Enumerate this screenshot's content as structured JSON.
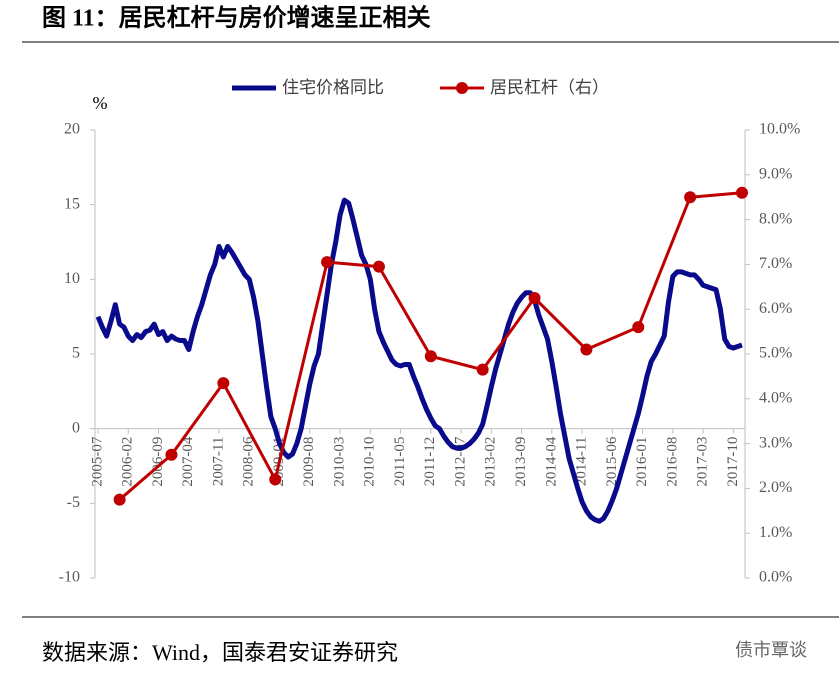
{
  "chart_data": {
    "type": "line",
    "title": "图 11：居民杠杆与房价增速呈正相关",
    "y_unit": "%",
    "source": "数据来源：Wind，国泰君安证券研究",
    "watermark": "债市覃谈",
    "categories": [
      "2005-07",
      null,
      null,
      null,
      null,
      null,
      null,
      "2006-02",
      null,
      null,
      null,
      null,
      null,
      null,
      "2006-09",
      null,
      null,
      null,
      null,
      null,
      null,
      "2007-04",
      null,
      null,
      null,
      null,
      null,
      null,
      "2007-11",
      null,
      null,
      null,
      null,
      null,
      null,
      "2008-06",
      null,
      null,
      null,
      null,
      null,
      null,
      "2009-01",
      null,
      null,
      null,
      null,
      null,
      null,
      "2009-08",
      null,
      null,
      null,
      null,
      null,
      null,
      "2010-03",
      null,
      null,
      null,
      null,
      null,
      null,
      "2010-10",
      null,
      null,
      null,
      null,
      null,
      null,
      "2011-05",
      null,
      null,
      null,
      null,
      null,
      null,
      "2011-12",
      null,
      null,
      null,
      null,
      null,
      null,
      "2012-07",
      null,
      null,
      null,
      null,
      null,
      null,
      "2013-02",
      null,
      null,
      null,
      null,
      null,
      null,
      "2013-09",
      null,
      null,
      null,
      null,
      null,
      null,
      "2014-04",
      null,
      null,
      null,
      null,
      null,
      null,
      "2014-11",
      null,
      null,
      null,
      null,
      null,
      null,
      "2015-06",
      null,
      null,
      null,
      null,
      null,
      null,
      "2016-01",
      null,
      null,
      null,
      null,
      null,
      null,
      "2016-08",
      null,
      null,
      null,
      null,
      null,
      null,
      "2017-03",
      null,
      null,
      null,
      null,
      null,
      null,
      "2017-10",
      null,
      null
    ],
    "series": [
      {
        "name": "住宅价格同比",
        "color": "#0a0a8c",
        "axis": "y",
        "marker": false,
        "values": [
          7.5,
          6.8,
          6.2,
          7.2,
          8.3,
          7.0,
          6.8,
          6.2,
          5.9,
          6.3,
          6.1,
          6.5,
          6.6,
          7.0,
          6.3,
          6.5,
          5.9,
          6.2,
          6.0,
          5.9,
          5.9,
          5.3,
          6.5,
          7.5,
          8.3,
          9.3,
          10.3,
          11.0,
          12.2,
          11.5,
          12.2,
          11.8,
          11.3,
          10.8,
          10.3,
          10.0,
          8.8,
          7.2,
          5.0,
          2.8,
          0.8,
          0,
          -1.0,
          -1.6,
          -1.9,
          -1.7,
          -1.0,
          0,
          1.5,
          3.0,
          4.2,
          5.0,
          7.0,
          9.0,
          11.0,
          12.5,
          14.3,
          15.3,
          15.1,
          14.0,
          12.8,
          11.6,
          11.0,
          10.0,
          8.0,
          6.5,
          5.8,
          5.2,
          4.6,
          4.3,
          4.2,
          4.3,
          4.3,
          3.5,
          2.8,
          2.0,
          1.3,
          0.7,
          0.2,
          0,
          -0.5,
          -0.9,
          -1.2,
          -1.3,
          -1.3,
          -1.2,
          -1.0,
          -0.7,
          -0.3,
          0.3,
          1.5,
          2.8,
          4.0,
          5.0,
          6.0,
          7.0,
          7.8,
          8.4,
          8.8,
          9.1,
          9.1,
          8.6,
          7.6,
          6.8,
          6.0,
          4.5,
          2.8,
          1.0,
          -0.5,
          -2.0,
          -3.0,
          -4.0,
          -4.9,
          -5.5,
          -5.9,
          -6.1,
          -6.2,
          -6.0,
          -5.5,
          -4.8,
          -4.0,
          -3.0,
          -2.0,
          -1.0,
          0,
          1.0,
          2.2,
          3.5,
          4.5,
          5.0,
          5.6,
          6.2,
          8.5,
          10.2,
          10.5,
          10.5,
          10.4,
          10.3,
          10.3,
          10.0,
          9.6,
          9.5,
          9.4,
          9.3,
          8.0,
          6.0,
          5.5,
          5.4,
          5.5,
          5.6
        ]
      },
      {
        "name": "居民杠杆（右）",
        "color": "#c00000",
        "axis": "y2",
        "marker": true,
        "values": [
          null,
          null,
          null,
          null,
          null,
          1.75,
          null,
          null,
          null,
          null,
          null,
          null,
          null,
          null,
          null,
          null,
          null,
          2.75,
          null,
          null,
          null,
          null,
          null,
          null,
          null,
          null,
          null,
          null,
          null,
          4.35,
          null,
          null,
          null,
          null,
          null,
          null,
          null,
          null,
          null,
          null,
          null,
          2.2,
          null,
          null,
          null,
          null,
          null,
          null,
          null,
          null,
          null,
          null,
          null,
          7.05,
          null,
          null,
          null,
          null,
          null,
          null,
          null,
          null,
          null,
          null,
          null,
          6.95,
          null,
          null,
          null,
          null,
          null,
          null,
          null,
          null,
          null,
          null,
          null,
          4.95,
          null,
          null,
          null,
          null,
          null,
          null,
          null,
          null,
          null,
          null,
          null,
          4.65,
          null,
          null,
          null,
          null,
          null,
          null,
          null,
          null,
          null,
          null,
          null,
          6.25,
          null,
          null,
          null,
          null,
          null,
          null,
          null,
          null,
          null,
          null,
          null,
          5.1,
          null,
          null,
          null,
          null,
          null,
          null,
          null,
          null,
          null,
          null,
          null,
          5.6,
          null,
          null,
          null,
          null,
          null,
          null,
          null,
          null,
          null,
          null,
          null,
          8.5,
          null,
          null,
          null,
          null,
          null,
          null,
          null,
          null,
          null,
          null,
          null,
          8.6
        ]
      }
    ],
    "ylim": [
      -10,
      20
    ],
    "yticks": [
      -10,
      -5,
      0,
      5,
      10,
      15,
      20
    ],
    "y2lim": [
      0,
      10
    ],
    "y2ticks": [
      {
        "value": 0,
        "label": "0.0%"
      },
      {
        "value": 1,
        "label": "1.0%"
      },
      {
        "value": 2,
        "label": "2.0%"
      },
      {
        "value": 3,
        "label": "3.0%"
      },
      {
        "value": 4,
        "label": "4.0%"
      },
      {
        "value": 5,
        "label": "5.0%"
      },
      {
        "value": 6,
        "label": "6.0%"
      },
      {
        "value": 7,
        "label": "7.0%"
      },
      {
        "value": 8,
        "label": "8.0%"
      },
      {
        "value": 9,
        "label": "9.0%"
      },
      {
        "value": 10,
        "label": "10.0%"
      }
    ],
    "grid": false,
    "legend": "top"
  }
}
